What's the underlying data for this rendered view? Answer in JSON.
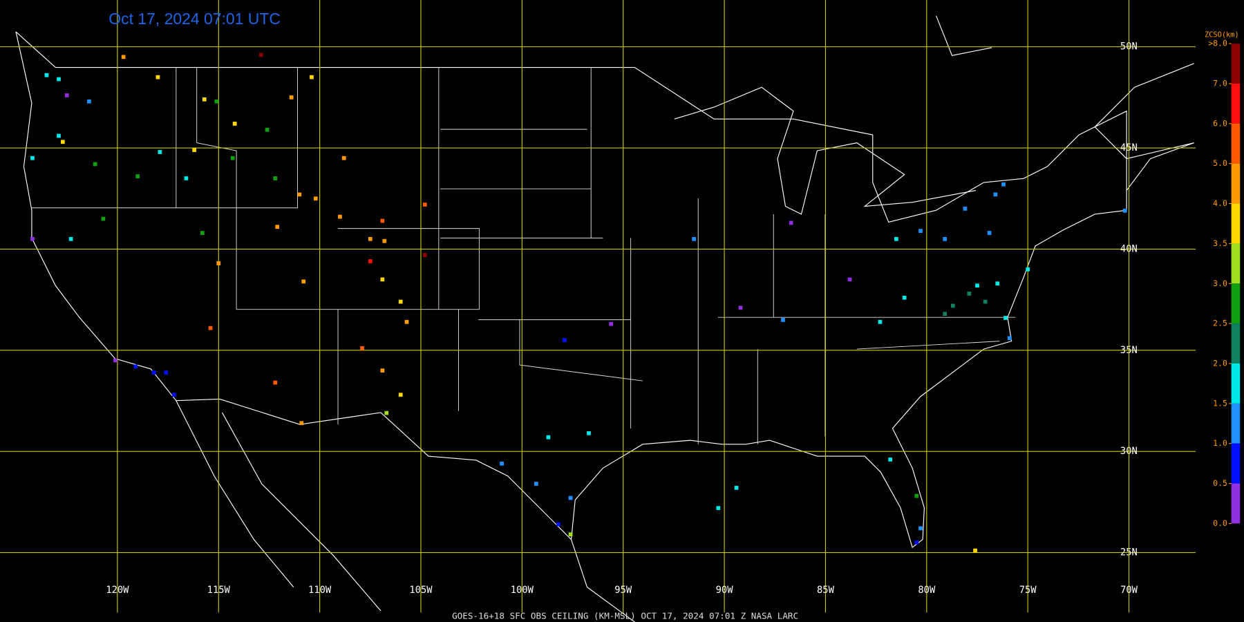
{
  "title": "Oct 17, 2024 07:01 UTC",
  "footer": "GOES-16+18  SFC OBS CEILING (KM-MSL)  OCT 17, 2024 07:01 Z  NASA LARC",
  "grid": {
    "lat": [
      {
        "value": 50,
        "label": "50N"
      },
      {
        "value": 45,
        "label": "45N"
      },
      {
        "value": 40,
        "label": "40N"
      },
      {
        "value": 35,
        "label": "35N"
      },
      {
        "value": 30,
        "label": "30N"
      },
      {
        "value": 25,
        "label": "25N"
      }
    ],
    "lon": [
      {
        "value": -120,
        "label": "120W"
      },
      {
        "value": -115,
        "label": "115W"
      },
      {
        "value": -110,
        "label": "110W"
      },
      {
        "value": -105,
        "label": "105W"
      },
      {
        "value": -100,
        "label": "100W"
      },
      {
        "value": -95,
        "label": "95W"
      },
      {
        "value": -90,
        "label": "90W"
      },
      {
        "value": -85,
        "label": "85W"
      },
      {
        "value": -80,
        "label": "80W"
      },
      {
        "value": -75,
        "label": "75W"
      },
      {
        "value": -70,
        "label": "70W"
      }
    ],
    "color": "#c8c800"
  },
  "colorbar": {
    "title": "ZCSO(km)",
    "levels": [
      {
        "value": 8,
        "label": ">8.0"
      },
      {
        "value": 7,
        "label": "7.0"
      },
      {
        "value": 6,
        "label": "6.0"
      },
      {
        "value": 5,
        "label": "5.0"
      },
      {
        "value": 4,
        "label": "4.0"
      },
      {
        "value": 3.5,
        "label": "3.5"
      },
      {
        "value": 3,
        "label": "3.0"
      },
      {
        "value": 2.5,
        "label": "2.5"
      },
      {
        "value": 2,
        "label": "2.0"
      },
      {
        "value": 1.5,
        "label": "1.5"
      },
      {
        "value": 1,
        "label": "1.0"
      },
      {
        "value": 0.5,
        "label": "0.5"
      },
      {
        "value": 0,
        "label": "0.0"
      }
    ],
    "colors": [
      "#8b0000",
      "#ff1010",
      "#ff5a00",
      "#ff9a00",
      "#ffd800",
      "#a0e020",
      "#10a010",
      "#108060",
      "#00e8e8",
      "#1e90ff",
      "#0010ff",
      "#9030e0"
    ]
  },
  "observations": [
    [
      -122.9,
      48.4,
      1.7
    ],
    [
      -123.5,
      48.6,
      1.6
    ],
    [
      -122.5,
      47.6,
      0.3
    ],
    [
      -121.4,
      47.3,
      1.2
    ],
    [
      -122.9,
      45.6,
      1.7
    ],
    [
      -122.7,
      45.3,
      3.7
    ],
    [
      -124.2,
      44.5,
      1.6
    ],
    [
      -121.1,
      44.2,
      2.8
    ],
    [
      -119.0,
      43.6,
      2.8
    ],
    [
      -117.9,
      44.8,
      1.7
    ],
    [
      -118.0,
      48.5,
      3.7
    ],
    [
      -119.7,
      49.5,
      4.5
    ],
    [
      -115.7,
      47.4,
      3.7
    ],
    [
      -115.1,
      47.3,
      2.8
    ],
    [
      -114.2,
      46.2,
      3.7
    ],
    [
      -112.6,
      45.9,
      2.8
    ],
    [
      -111.4,
      47.5,
      4.5
    ],
    [
      -110.4,
      48.5,
      3.7
    ],
    [
      -112.9,
      49.6,
      8.5
    ],
    [
      -116.2,
      44.9,
      3.7
    ],
    [
      -114.3,
      44.5,
      2.8
    ],
    [
      -116.6,
      43.5,
      1.7
    ],
    [
      -112.2,
      43.5,
      2.8
    ],
    [
      -108.8,
      44.5,
      4.5
    ],
    [
      -111.0,
      42.7,
      4.5
    ],
    [
      -110.2,
      42.5,
      4.5
    ],
    [
      -109.0,
      41.6,
      4.5
    ],
    [
      -112.1,
      41.1,
      4.5
    ],
    [
      -106.9,
      41.4,
      5.5
    ],
    [
      -104.8,
      42.2,
      5.5
    ],
    [
      -107.5,
      40.5,
      4.5
    ],
    [
      -106.8,
      40.4,
      4.5
    ],
    [
      -107.5,
      39.4,
      6.5
    ],
    [
      -104.8,
      39.7,
      8.5
    ],
    [
      -106.9,
      38.5,
      3.7
    ],
    [
      -106.0,
      37.4,
      3.7
    ],
    [
      -105.7,
      36.4,
      4.5
    ],
    [
      -107.9,
      35.1,
      5.5
    ],
    [
      -106.9,
      34.0,
      4.5
    ],
    [
      -106.0,
      32.8,
      3.7
    ],
    [
      -106.7,
      31.9,
      3.2
    ],
    [
      -110.9,
      31.4,
      4.5
    ],
    [
      -112.2,
      33.4,
      5.5
    ],
    [
      -115.4,
      36.1,
      5.5
    ],
    [
      -115.0,
      39.3,
      4.5
    ],
    [
      -110.8,
      38.4,
      4.5
    ],
    [
      -115.8,
      40.8,
      2.8
    ],
    [
      -120.7,
      41.5,
      2.8
    ],
    [
      -122.3,
      40.5,
      1.7
    ],
    [
      -124.2,
      40.5,
      0.3
    ],
    [
      -120.1,
      34.5,
      0.3
    ],
    [
      -119.1,
      34.2,
      0.8
    ],
    [
      -118.2,
      33.9,
      0.8
    ],
    [
      -117.6,
      33.9,
      0.8
    ],
    [
      -117.2,
      32.8,
      0.8
    ],
    [
      -97.9,
      35.5,
      0.8
    ],
    [
      -95.6,
      36.3,
      0.3
    ],
    [
      -98.7,
      30.7,
      1.7
    ],
    [
      -96.7,
      30.9,
      1.7
    ],
    [
      -101.0,
      29.4,
      1.2
    ],
    [
      -99.3,
      28.4,
      1.2
    ],
    [
      -97.6,
      27.7,
      1.2
    ],
    [
      -97.6,
      25.9,
      3.2
    ],
    [
      -98.2,
      26.4,
      0.8
    ],
    [
      -90.3,
      27.2,
      1.7
    ],
    [
      -89.4,
      28.2,
      1.7
    ],
    [
      -91.5,
      40.5,
      1.2
    ],
    [
      -89.2,
      37.1,
      0.3
    ],
    [
      -87.1,
      36.5,
      1.2
    ],
    [
      -86.7,
      41.3,
      0.3
    ],
    [
      -83.8,
      38.5,
      0.3
    ],
    [
      -81.5,
      40.5,
      1.7
    ],
    [
      -80.3,
      40.9,
      1.2
    ],
    [
      -79.1,
      40.5,
      1.2
    ],
    [
      -78.1,
      42.0,
      1.2
    ],
    [
      -76.6,
      42.7,
      1.2
    ],
    [
      -76.9,
      40.8,
      1.2
    ],
    [
      -76.2,
      43.2,
      1.2
    ],
    [
      -81.1,
      37.6,
      1.7
    ],
    [
      -78.7,
      37.2,
      2.2
    ],
    [
      -77.9,
      37.8,
      2.2
    ],
    [
      -77.1,
      37.4,
      2.2
    ],
    [
      -79.1,
      36.8,
      2.2
    ],
    [
      -77.5,
      38.2,
      1.7
    ],
    [
      -76.5,
      38.3,
      1.7
    ],
    [
      -76.1,
      36.6,
      1.7
    ],
    [
      -75.9,
      35.6,
      1.2
    ],
    [
      -75.0,
      39.0,
      1.7
    ],
    [
      -82.3,
      36.4,
      1.7
    ],
    [
      -81.8,
      29.6,
      1.7
    ],
    [
      -80.5,
      27.8,
      2.8
    ],
    [
      -80.3,
      26.2,
      1.2
    ],
    [
      -80.5,
      25.5,
      0.8
    ],
    [
      -77.6,
      25.1,
      3.7
    ],
    [
      -70.2,
      41.9,
      1.2
    ]
  ]
}
